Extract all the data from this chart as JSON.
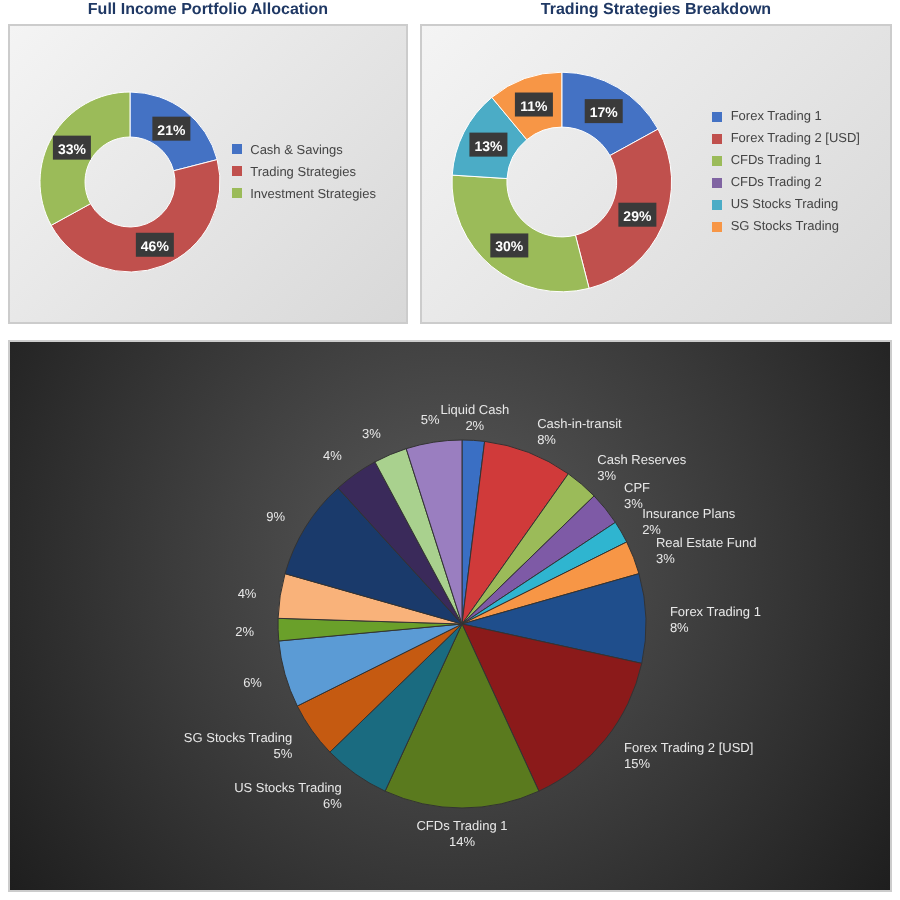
{
  "chart_data": [
    {
      "type": "donut",
      "title": "Full Income Portfolio Allocation",
      "categories": [
        "Cash & Savings",
        "Trading Strategies",
        "Investment Strategies"
      ],
      "values": [
        21,
        46,
        33
      ],
      "colors": [
        "#4472c4",
        "#c0504d",
        "#9bbb59"
      ],
      "value_labels": [
        "21%",
        "46%",
        "33%"
      ],
      "legend": "right"
    },
    {
      "type": "donut",
      "title": "Trading Strategies Breakdown",
      "categories": [
        "Forex Trading 1",
        "Forex Trading 2 [USD]",
        "CFDs Trading 1",
        "CFDs Trading 2",
        "US Stocks Trading",
        "SG Stocks Trading"
      ],
      "values": [
        17,
        29,
        30,
        0,
        13,
        11
      ],
      "colors": [
        "#4472c4",
        "#c0504d",
        "#9bbb59",
        "#8064a2",
        "#4bacc6",
        "#f79646"
      ],
      "value_labels": [
        "17%",
        "29%",
        "30%",
        null,
        "13%",
        "11%"
      ],
      "legend": "right"
    },
    {
      "type": "pie",
      "categories": [
        "Liquid Cash",
        "Cash-in-transit",
        "Cash Reserves",
        "CPF",
        "Insurance Plans",
        "Real Estate Fund",
        "Forex Trading 1",
        "Forex Trading 2 [USD]",
        "CFDs Trading 1",
        "US Stocks Trading",
        "SG Stocks Trading",
        null,
        null,
        null,
        null,
        null,
        null,
        null
      ],
      "values": [
        2,
        8,
        3,
        3,
        2,
        3,
        8,
        15,
        14,
        6,
        5,
        6,
        2,
        4,
        9,
        4,
        3,
        5
      ],
      "colors": [
        "#3a6fc4",
        "#d03a3a",
        "#9bbb59",
        "#7e5aa6",
        "#2fb5d0",
        "#f79646",
        "#1f4e8c",
        "#8b1a1a",
        "#5a7a1e",
        "#1a6b80",
        "#c55a11",
        "#5b9bd5",
        "#6aa02a",
        "#f9b27a",
        "#1a3a6b",
        "#3a2a5a",
        "#a9d18e",
        "#9a7ec0"
      ],
      "value_labels": [
        "2%",
        "8%",
        "3%",
        "3%",
        "2%",
        "3%",
        "8%",
        "15%",
        "14%",
        "6%",
        "5%",
        "6%",
        "2%",
        "4%",
        "9%",
        "4%",
        "3%",
        "5%"
      ]
    }
  ]
}
